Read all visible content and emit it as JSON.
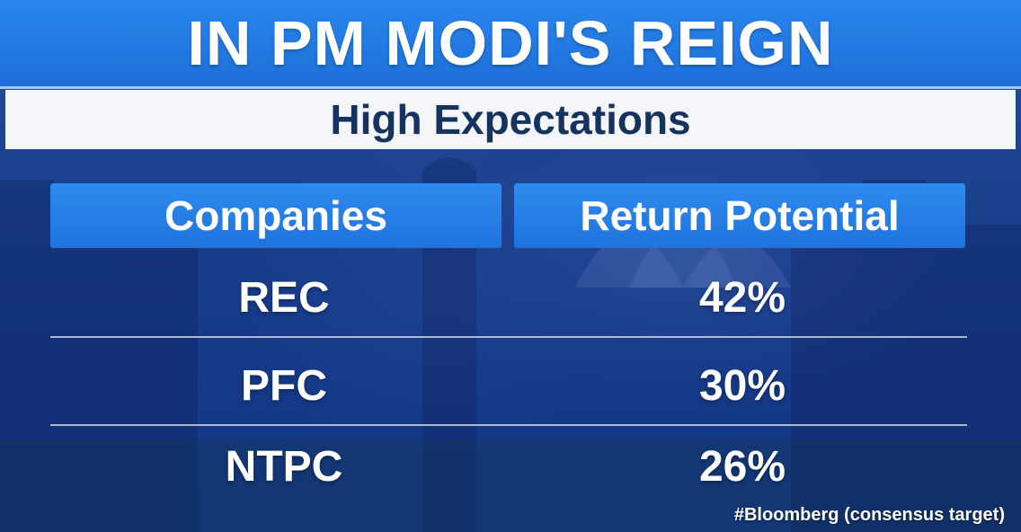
{
  "header": {
    "title": "IN PM MODI'S REIGN"
  },
  "subheader": {
    "title": "High Expectations"
  },
  "table": {
    "columns": [
      "Companies",
      "Return Potential"
    ],
    "rows": [
      {
        "company": "REC",
        "return": "42%"
      },
      {
        "company": "PFC",
        "return": "30%"
      },
      {
        "company": "NTPC",
        "return": "26%"
      }
    ]
  },
  "footnote": "#Bloomberg (consensus target)",
  "colors": {
    "title_bar": "#1d6fd8",
    "subtitle_text": "#16325f",
    "column_header": "#2a80ea",
    "background": "#1f4c9a"
  }
}
